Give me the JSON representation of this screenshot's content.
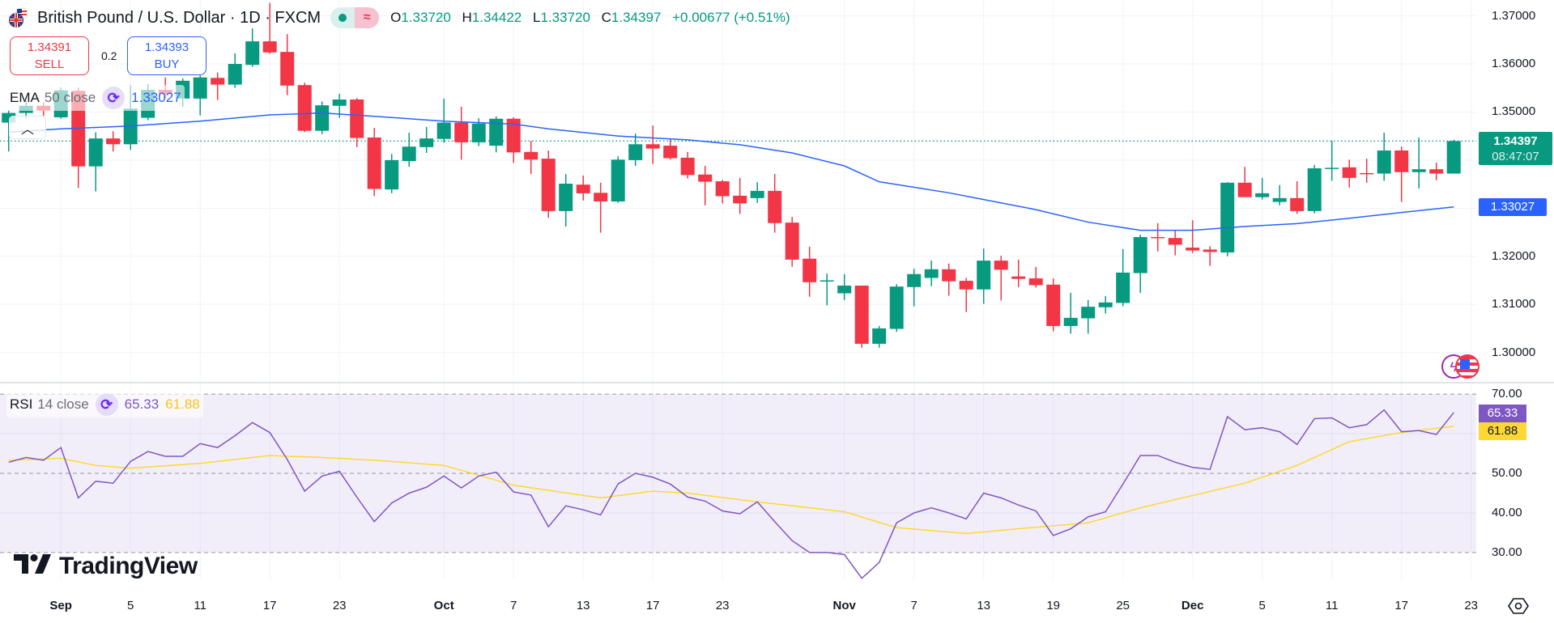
{
  "header": {
    "title": "British Pound / U.S. Dollar · 1D · FXCM",
    "flag_icon": "gbp-usd-flag-icon",
    "market_status_icon": "market-open-dot-icon",
    "data_status_icon": "delayed-data-wave-icon",
    "data_status_glyph": "≈",
    "ohlc": {
      "o_label": "O",
      "o": "1.33720",
      "h_label": "H",
      "h": "1.34422",
      "l_label": "L",
      "l": "1.33720",
      "c_label": "C",
      "c": "1.34397",
      "change": "+0.00677 (+0.51%)"
    }
  },
  "trade": {
    "sell_price": "1.34391",
    "sell_label": "SELL",
    "spread": "0.2",
    "buy_price": "1.34393",
    "buy_label": "BUY"
  },
  "ema_legend": {
    "name": "EMA",
    "params": "50 close",
    "value": "1.33027",
    "icon": "refresh-icon"
  },
  "collapse_icon": "chevron-up-icon",
  "rsi_legend": {
    "name": "RSI",
    "params": "14 close",
    "value": "65.33",
    "ma_value": "61.88",
    "icon": "refresh-icon"
  },
  "price_axis": {
    "labels": [
      "1.37000",
      "1.36000",
      "1.35000",
      "1.32000",
      "1.31000",
      "1.30000"
    ],
    "current_price": "1.34397",
    "countdown": "08:47:07",
    "ema_price": "1.33027"
  },
  "rsi_axis": {
    "labels": [
      "70.00",
      "50.00",
      "40.00",
      "30.00"
    ],
    "rsi_tag": "65.33",
    "ma_tag": "61.88"
  },
  "time_axis": {
    "ticks": [
      {
        "label": "Sep",
        "bar": 3,
        "major": true
      },
      {
        "label": "5",
        "bar": 7
      },
      {
        "label": "11",
        "bar": 11
      },
      {
        "label": "17",
        "bar": 15
      },
      {
        "label": "23",
        "bar": 19
      },
      {
        "label": "Oct",
        "bar": 25,
        "major": true
      },
      {
        "label": "7",
        "bar": 29
      },
      {
        "label": "13",
        "bar": 33
      },
      {
        "label": "17",
        "bar": 37
      },
      {
        "label": "23",
        "bar": 41
      },
      {
        "label": "Nov",
        "bar": 48,
        "major": true
      },
      {
        "label": "7",
        "bar": 52
      },
      {
        "label": "13",
        "bar": 56
      },
      {
        "label": "19",
        "bar": 60
      },
      {
        "label": "25",
        "bar": 64
      },
      {
        "label": "Dec",
        "bar": 68,
        "major": true
      },
      {
        "label": "5",
        "bar": 72
      },
      {
        "label": "11",
        "bar": 76
      },
      {
        "label": "17",
        "bar": 80
      },
      {
        "label": "23",
        "bar": 84
      }
    ],
    "settings_icon": "chart-settings-icon"
  },
  "brand": {
    "name": "TradingView",
    "logo_icon": "tradingview-logo-icon"
  },
  "event_icons": [
    "dividend-lightning-icon",
    "us-economic-event-flag-icon"
  ],
  "colors": {
    "up": "#089981",
    "down": "#f23645",
    "ema": "#2962ff",
    "rsi": "#7e57c2",
    "rsi_ma": "#fdd835",
    "rsi_band": "#7e57c2"
  },
  "chart_data": [
    {
      "type": "candlestick",
      "ylim": [
        1.295,
        1.375
      ],
      "grid": true,
      "candles_ohlc": [
        [
          1.3478,
          1.3503,
          1.3418,
          1.3498
        ],
        [
          1.3498,
          1.3523,
          1.3486,
          1.3513
        ],
        [
          1.3513,
          1.352,
          1.3492,
          1.3503
        ],
        [
          1.3489,
          1.3551,
          1.3486,
          1.3545
        ],
        [
          1.3544,
          1.3551,
          1.3342,
          1.3387
        ],
        [
          1.3387,
          1.3458,
          1.3335,
          1.3445
        ],
        [
          1.3445,
          1.346,
          1.3418,
          1.3433
        ],
        [
          1.3433,
          1.3556,
          1.3421,
          1.3507
        ],
        [
          1.3488,
          1.3557,
          1.3483,
          1.3546
        ],
        [
          1.3546,
          1.3572,
          1.3528,
          1.3537
        ],
        [
          1.3528,
          1.357,
          1.3511,
          1.3565
        ],
        [
          1.3528,
          1.3576,
          1.3493,
          1.3572
        ],
        [
          1.3571,
          1.3582,
          1.3525,
          1.3557
        ],
        [
          1.3557,
          1.3622,
          1.355,
          1.36
        ],
        [
          1.3598,
          1.3674,
          1.3594,
          1.3647
        ],
        [
          1.3647,
          1.3727,
          1.3621,
          1.3624
        ],
        [
          1.3625,
          1.3662,
          1.3535,
          1.3555
        ],
        [
          1.3556,
          1.3561,
          1.3458,
          1.3461
        ],
        [
          1.3461,
          1.3522,
          1.3454,
          1.3514
        ],
        [
          1.3513,
          1.3538,
          1.3488,
          1.3526
        ],
        [
          1.3526,
          1.3529,
          1.3427,
          1.3446
        ],
        [
          1.3447,
          1.3467,
          1.3325,
          1.334
        ],
        [
          1.3339,
          1.3413,
          1.3331,
          1.34
        ],
        [
          1.3398,
          1.3457,
          1.3386,
          1.3428
        ],
        [
          1.3427,
          1.3469,
          1.3415,
          1.3445
        ],
        [
          1.3444,
          1.3528,
          1.3436,
          1.3478
        ],
        [
          1.3478,
          1.3511,
          1.3401,
          1.3437
        ],
        [
          1.3437,
          1.3487,
          1.3429,
          1.3476
        ],
        [
          1.343,
          1.3491,
          1.3416,
          1.3486
        ],
        [
          1.3486,
          1.3489,
          1.3394,
          1.3416
        ],
        [
          1.3417,
          1.344,
          1.3371,
          1.3401
        ],
        [
          1.3403,
          1.342,
          1.328,
          1.3294
        ],
        [
          1.3294,
          1.3371,
          1.3262,
          1.3351
        ],
        [
          1.3349,
          1.3368,
          1.3316,
          1.3331
        ],
        [
          1.3332,
          1.3353,
          1.3249,
          1.3314
        ],
        [
          1.3314,
          1.3408,
          1.3311,
          1.3401
        ],
        [
          1.34,
          1.3455,
          1.3388,
          1.3433
        ],
        [
          1.3433,
          1.3472,
          1.3392,
          1.3424
        ],
        [
          1.343,
          1.3444,
          1.3401,
          1.3404
        ],
        [
          1.3405,
          1.3417,
          1.3362,
          1.3369
        ],
        [
          1.337,
          1.3388,
          1.3306,
          1.3355
        ],
        [
          1.3356,
          1.3359,
          1.331,
          1.3325
        ],
        [
          1.3326,
          1.3363,
          1.3288,
          1.331
        ],
        [
          1.3321,
          1.3354,
          1.3311,
          1.3336
        ],
        [
          1.3336,
          1.3371,
          1.3249,
          1.3269
        ],
        [
          1.327,
          1.3282,
          1.3178,
          1.3193
        ],
        [
          1.3195,
          1.322,
          1.3116,
          1.3146
        ],
        [
          1.3149,
          1.3164,
          1.3098,
          1.315
        ],
        [
          1.3123,
          1.3163,
          1.3109,
          1.3139
        ],
        [
          1.3139,
          1.3139,
          1.301,
          1.3018
        ],
        [
          1.3018,
          1.3055,
          1.301,
          1.305
        ],
        [
          1.3049,
          1.3142,
          1.3043,
          1.3137
        ],
        [
          1.3136,
          1.3174,
          1.3096,
          1.3163
        ],
        [
          1.3155,
          1.3191,
          1.3138,
          1.3173
        ],
        [
          1.3173,
          1.3185,
          1.3118,
          1.3148
        ],
        [
          1.3149,
          1.3155,
          1.3084,
          1.3131
        ],
        [
          1.3131,
          1.3216,
          1.3101,
          1.3191
        ],
        [
          1.3191,
          1.3201,
          1.3108,
          1.3172
        ],
        [
          1.3158,
          1.3193,
          1.3136,
          1.3153
        ],
        [
          1.3154,
          1.3178,
          1.3135,
          1.314
        ],
        [
          1.3141,
          1.3154,
          1.3044,
          1.3055
        ],
        [
          1.3055,
          1.3124,
          1.3039,
          1.3072
        ],
        [
          1.3071,
          1.3109,
          1.3039,
          1.3095
        ],
        [
          1.3094,
          1.3117,
          1.3081,
          1.3104
        ],
        [
          1.3103,
          1.3215,
          1.3096,
          1.3166
        ],
        [
          1.3165,
          1.3245,
          1.3124,
          1.324
        ],
        [
          1.324,
          1.3269,
          1.321,
          1.3239
        ],
        [
          1.3238,
          1.3255,
          1.3202,
          1.3224
        ],
        [
          1.3218,
          1.3275,
          1.3207,
          1.3212
        ],
        [
          1.3214,
          1.3221,
          1.318,
          1.3209
        ],
        [
          1.3208,
          1.3354,
          1.32,
          1.3353
        ],
        [
          1.3353,
          1.3386,
          1.3323,
          1.3323
        ],
        [
          1.3323,
          1.3363,
          1.3318,
          1.3331
        ],
        [
          1.3313,
          1.3348,
          1.3306,
          1.3321
        ],
        [
          1.3321,
          1.3356,
          1.3288,
          1.3294
        ],
        [
          1.3294,
          1.339,
          1.3289,
          1.3383
        ],
        [
          1.3382,
          1.344,
          1.3357,
          1.3384
        ],
        [
          1.3385,
          1.3401,
          1.3343,
          1.3363
        ],
        [
          1.3373,
          1.3403,
          1.3353,
          1.3372
        ],
        [
          1.3372,
          1.3457,
          1.3357,
          1.342
        ],
        [
          1.342,
          1.3428,
          1.3313,
          1.3375
        ],
        [
          1.3375,
          1.3447,
          1.3341,
          1.3381
        ],
        [
          1.3381,
          1.3395,
          1.3358,
          1.3372
        ],
        [
          1.3372,
          1.34422,
          1.3372,
          1.34397
        ]
      ],
      "ema_50": [
        [
          0,
          1.3458
        ],
        [
          3,
          1.3465
        ],
        [
          7,
          1.3471
        ],
        [
          11,
          1.3481
        ],
        [
          15,
          1.3494
        ],
        [
          18,
          1.3498
        ],
        [
          21,
          1.3491
        ],
        [
          25,
          1.3481
        ],
        [
          29,
          1.3475
        ],
        [
          31,
          1.3465
        ],
        [
          35,
          1.345
        ],
        [
          39,
          1.3442
        ],
        [
          42,
          1.3432
        ],
        [
          45,
          1.3415
        ],
        [
          48,
          1.3388
        ],
        [
          50,
          1.3355
        ],
        [
          54,
          1.3332
        ],
        [
          56,
          1.3318
        ],
        [
          59,
          1.3297
        ],
        [
          62,
          1.3271
        ],
        [
          65,
          1.3254
        ],
        [
          68,
          1.3254
        ],
        [
          71,
          1.3262
        ],
        [
          74,
          1.3268
        ],
        [
          77,
          1.3279
        ],
        [
          80,
          1.3291
        ],
        [
          83,
          1.33027
        ]
      ]
    },
    {
      "type": "line",
      "ylim": [
        20,
        75
      ],
      "bands": [
        30,
        50,
        70
      ],
      "rsi_14": [
        52.8,
        54,
        53.3,
        56.5,
        43.8,
        48,
        47.5,
        53,
        55.5,
        54.3,
        54.3,
        57.5,
        56.5,
        59.5,
        62.8,
        60.3,
        53.5,
        45.5,
        49.3,
        50.5,
        44,
        37.8,
        42.5,
        45,
        46.5,
        49.3,
        46.3,
        49.3,
        50.3,
        45.3,
        44.5,
        36.5,
        41.8,
        40.8,
        39.5,
        47.3,
        50,
        49,
        47.3,
        44,
        43,
        40.5,
        39.8,
        42.8,
        37.8,
        33,
        30,
        30,
        29.5,
        23.5,
        27.5,
        37.5,
        40,
        41.3,
        40,
        38.5,
        45,
        43.8,
        42,
        40.5,
        34.3,
        36,
        39,
        40.3,
        47.3,
        54.5,
        54.5,
        52.8,
        51.5,
        51,
        64.3,
        61,
        61.5,
        60.5,
        57.3,
        63.8,
        64,
        61.5,
        62.3,
        66,
        60.5,
        60.8,
        59.8,
        65.33
      ],
      "rsi_ma": [
        [
          0,
          53.3
        ],
        [
          3,
          53.8
        ],
        [
          5,
          52
        ],
        [
          7,
          51.3
        ],
        [
          11,
          52.5
        ],
        [
          15,
          54.5
        ],
        [
          18,
          54
        ],
        [
          21,
          53.3
        ],
        [
          25,
          52
        ],
        [
          29,
          47
        ],
        [
          34,
          43.8
        ],
        [
          37,
          45.5
        ],
        [
          39,
          45
        ],
        [
          43,
          42.8
        ],
        [
          48,
          40.3
        ],
        [
          51,
          36.3
        ],
        [
          55,
          34.8
        ],
        [
          58,
          36
        ],
        [
          62,
          37.5
        ],
        [
          65,
          41.3
        ],
        [
          71,
          47.5
        ],
        [
          74,
          52
        ],
        [
          77,
          58
        ],
        [
          80,
          60.3
        ],
        [
          83,
          61.88
        ]
      ]
    }
  ]
}
